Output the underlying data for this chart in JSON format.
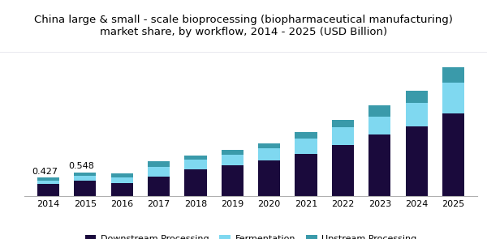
{
  "title": "China large & small - scale bioprocessing (biopharmaceutical manufacturing)\nmarket share, by workflow, 2014 - 2025 (USD Billion)",
  "years": [
    2014,
    2015,
    2016,
    2017,
    2018,
    2019,
    2020,
    2021,
    2022,
    2023,
    2024,
    2025
  ],
  "downstream": [
    0.27,
    0.35,
    0.3,
    0.45,
    0.62,
    0.7,
    0.82,
    0.98,
    1.18,
    1.42,
    1.6,
    1.9
  ],
  "fermentation": [
    0.085,
    0.11,
    0.12,
    0.22,
    0.22,
    0.25,
    0.28,
    0.35,
    0.4,
    0.42,
    0.55,
    0.72
  ],
  "upstream": [
    0.072,
    0.088,
    0.1,
    0.13,
    0.1,
    0.12,
    0.12,
    0.14,
    0.18,
    0.26,
    0.28,
    0.35
  ],
  "annotations": {
    "2014": "0.427",
    "2015": "0.548"
  },
  "colors": {
    "downstream": "#1a0a3c",
    "fermentation": "#7fd8f0",
    "upstream": "#3a9aaa"
  },
  "legend_labels": [
    "Downstream Processing",
    "Fermentation",
    "Upstream Processing"
  ],
  "title_fontsize": 9.5,
  "bar_width": 0.6,
  "ylim": [
    0,
    3.2
  ],
  "background_color": "#ffffff",
  "title_bg": "#eeeef5",
  "title_border": "#9090b0"
}
